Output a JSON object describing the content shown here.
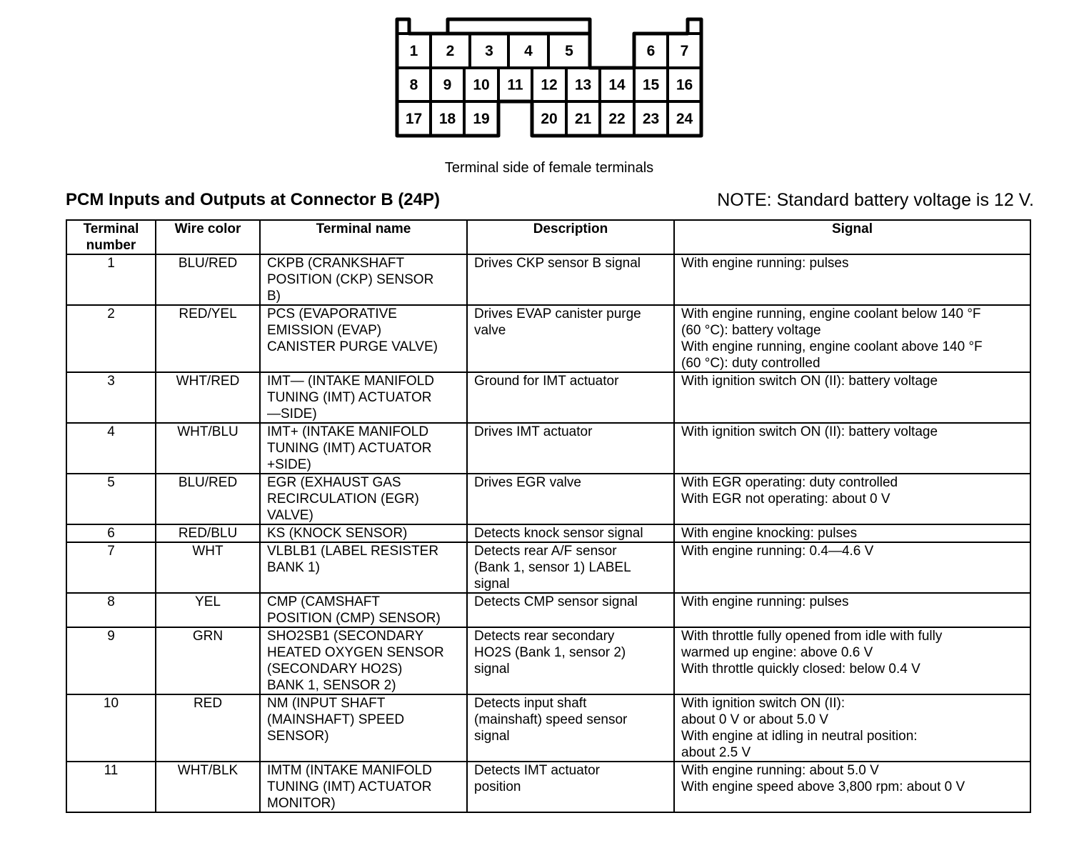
{
  "connector": {
    "cells": [
      "1",
      "2",
      "3",
      "4",
      "5",
      "6",
      "7",
      "8",
      "9",
      "10",
      "11",
      "12",
      "13",
      "14",
      "15",
      "16",
      "17",
      "18",
      "19",
      "20",
      "21",
      "22",
      "23",
      "24"
    ],
    "caption": "Terminal side of female terminals"
  },
  "title": "PCM Inputs and Outputs at Connector B (24P)",
  "note": "NOTE: Standard battery voltage is 12 V.",
  "table": {
    "headers": [
      "Terminal\nnumber",
      "Wire color",
      "Terminal name",
      "Description",
      "Signal"
    ],
    "rows": [
      [
        "1",
        "BLU/RED",
        "CKPB (CRANKSHAFT\nPOSITION (CKP) SENSOR\nB)",
        "Drives CKP sensor B signal",
        "With engine running: pulses"
      ],
      [
        "2",
        "RED/YEL",
        "PCS (EVAPORATIVE\nEMISSION (EVAP)\nCANISTER PURGE VALVE)",
        "Drives EVAP canister purge\nvalve",
        "With engine running, engine coolant below 140 °F\n(60 °C): battery voltage\nWith engine running, engine coolant above 140 °F\n(60 °C): duty controlled"
      ],
      [
        "3",
        "WHT/RED",
        "IMT— (INTAKE MANIFOLD\nTUNING (IMT) ACTUATOR\n—SIDE)",
        "Ground for IMT actuator",
        "With ignition switch ON (II): battery voltage"
      ],
      [
        "4",
        "WHT/BLU",
        "IMT+ (INTAKE MANIFOLD\nTUNING (IMT) ACTUATOR\n+SIDE)",
        "Drives IMT actuator",
        "With ignition switch ON (II): battery voltage"
      ],
      [
        "5",
        "BLU/RED",
        "EGR (EXHAUST GAS\nRECIRCULATION (EGR)\nVALVE)",
        "Drives EGR valve",
        "With EGR operating: duty controlled\nWith EGR not operating: about 0 V"
      ],
      [
        "6",
        "RED/BLU",
        "KS (KNOCK SENSOR)",
        "Detects knock sensor signal",
        "With engine knocking: pulses"
      ],
      [
        "7",
        "WHT",
        "VLBLB1 (LABEL RESISTER\nBANK 1)",
        "Detects rear A/F sensor\n(Bank 1, sensor 1) LABEL\nsignal",
        "With engine running: 0.4—4.6 V"
      ],
      [
        "8",
        "YEL",
        "CMP (CAMSHAFT\nPOSITION (CMP) SENSOR)",
        "Detects CMP sensor signal",
        "With engine running: pulses"
      ],
      [
        "9",
        "GRN",
        "SHO2SB1 (SECONDARY\nHEATED OXYGEN SENSOR\n(SECONDARY HO2S)\nBANK 1, SENSOR 2)",
        "Detects rear secondary\nHO2S (Bank 1, sensor 2)\nsignal",
        "With throttle fully opened from idle with fully\nwarmed up engine: above 0.6 V\nWith throttle quickly closed: below 0.4 V"
      ],
      [
        "10",
        "RED",
        "NM (INPUT SHAFT\n(MAINSHAFT) SPEED\nSENSOR)",
        "Detects input shaft\n(mainshaft) speed sensor\nsignal",
        "With ignition switch ON (II):\nabout 0 V or about 5.0 V\nWith engine at idling in neutral position:\nabout 2.5 V"
      ],
      [
        "11",
        "WHT/BLK",
        "IMTM (INTAKE MANIFOLD\nTUNING (IMT) ACTUATOR\nMONITOR)",
        "Detects IMT actuator\nposition",
        "With engine running: about 5.0 V\nWith engine speed above 3,800 rpm: about 0 V"
      ]
    ]
  }
}
